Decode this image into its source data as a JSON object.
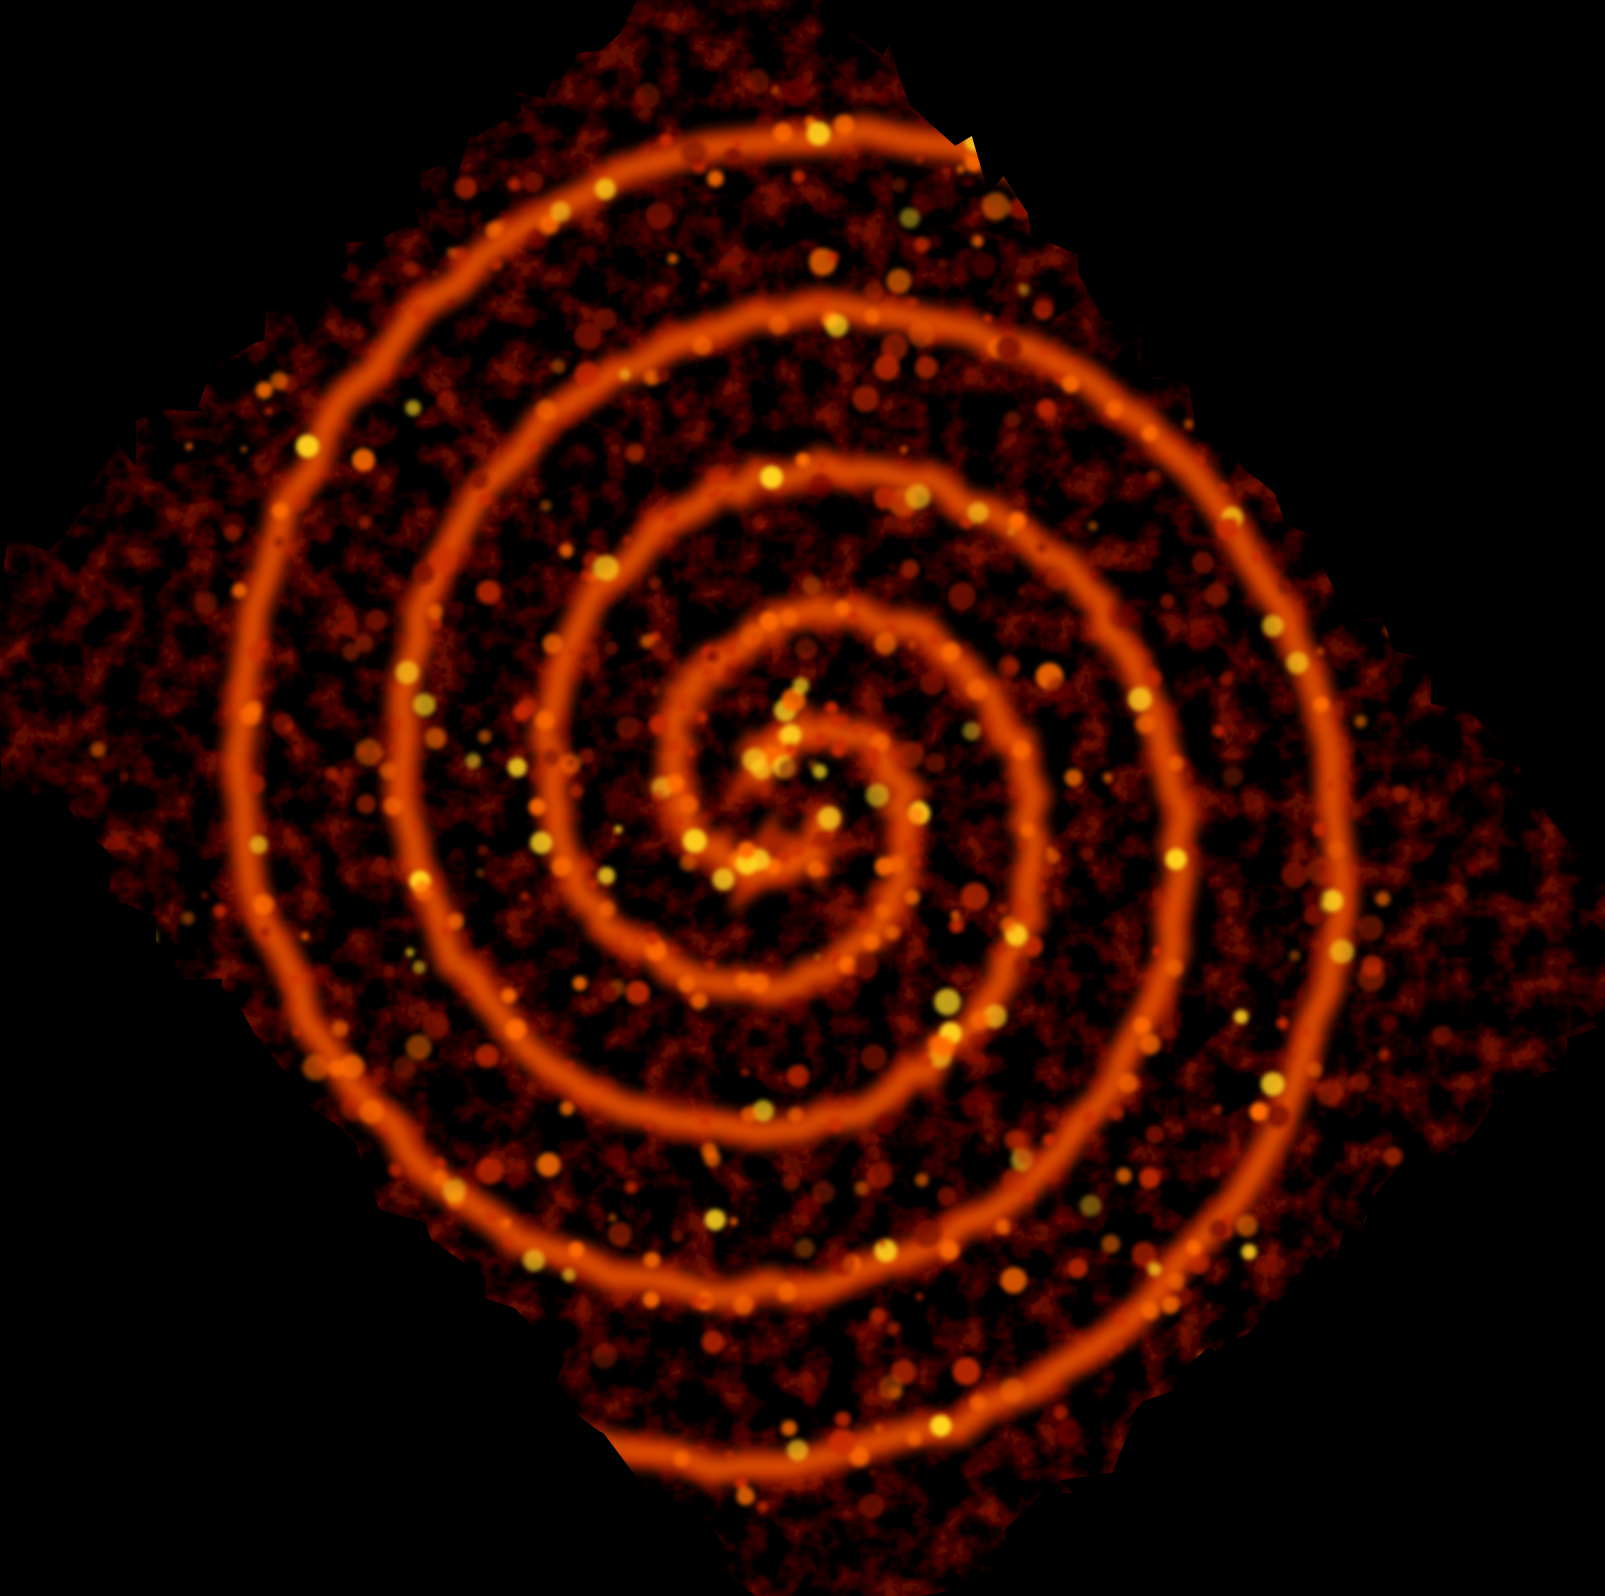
{
  "image": {
    "subject": "spiral-galaxy-emission-map",
    "colormap": "hot",
    "colors": {
      "background": "#000000",
      "faint": "#3a0000",
      "dim": "#7a0a00",
      "mid": "#c82800",
      "bright": "#ff6a00",
      "peak": "#ffd21e"
    },
    "spiral": {
      "arm_count": 2,
      "turns": 2.3,
      "orientation": "clockwise-outward"
    },
    "footprint": {
      "shape": "tilted-rectangle",
      "rotation_degrees": -42
    }
  }
}
